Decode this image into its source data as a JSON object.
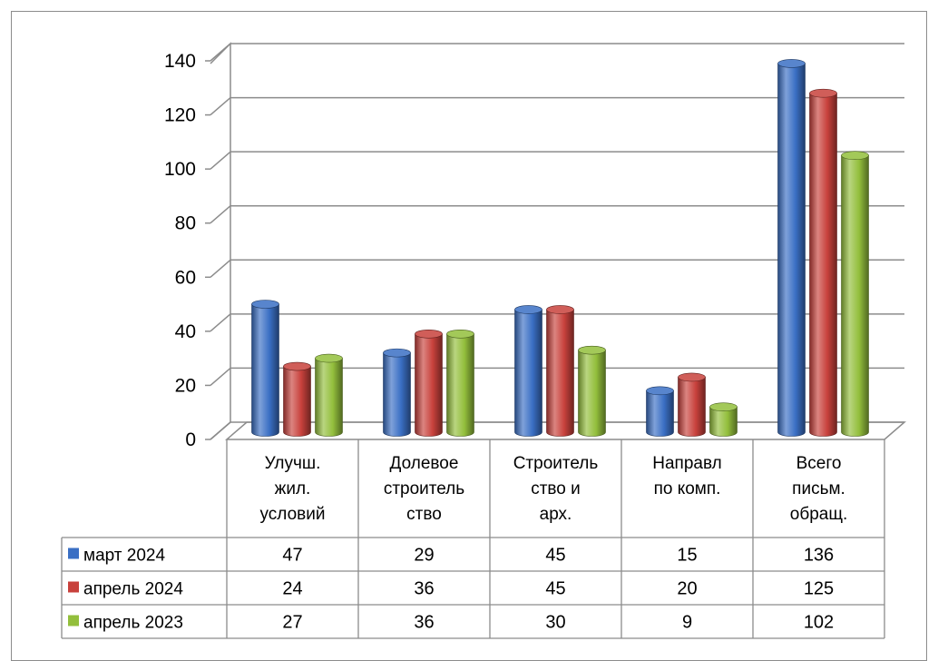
{
  "chart_data": {
    "type": "bar",
    "style": "3d-cylinder",
    "categories": [
      [
        "Улучш.",
        "жил.",
        "условий"
      ],
      [
        "Долевое",
        "строитель",
        "ство"
      ],
      [
        "Строитель",
        "ство и",
        "арх."
      ],
      [
        "Направл",
        "по комп."
      ],
      [
        "Всего",
        "письм.",
        "обращ."
      ]
    ],
    "series": [
      {
        "name": "март 2024",
        "color": "#3a6fc4",
        "values": [
          47,
          29,
          45,
          15,
          136
        ]
      },
      {
        "name": "апрель 2024",
        "color": "#c8413c",
        "values": [
          24,
          36,
          45,
          20,
          125
        ]
      },
      {
        "name": "апрель 2023",
        "color": "#93bf3c",
        "values": [
          27,
          36,
          30,
          9,
          102
        ]
      }
    ],
    "yticks": [
      0,
      20,
      40,
      60,
      80,
      100,
      120,
      140
    ],
    "ylim": [
      0,
      140
    ],
    "grid": true,
    "legend": "data-table"
  }
}
